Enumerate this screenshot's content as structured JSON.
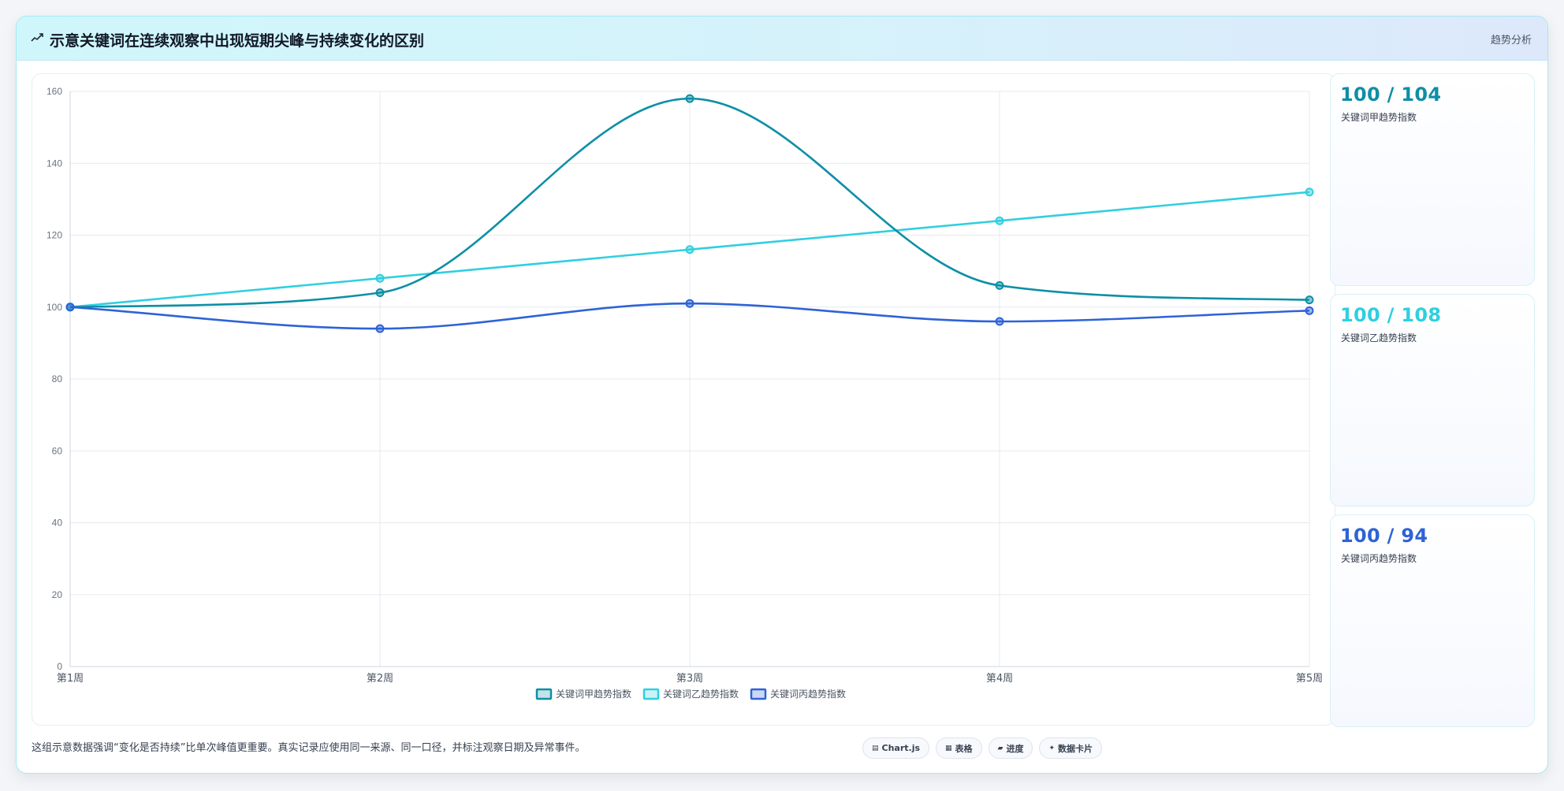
{
  "header": {
    "title": "示意关键词在连续观察中出现短期尖峰与持续变化的区别",
    "tag": "趋势分析",
    "icon": "trend-line-icon"
  },
  "chart_data": {
    "type": "line",
    "categories": [
      "第1周",
      "第2周",
      "第3周",
      "第4周",
      "第5周"
    ],
    "series": [
      {
        "name": "关键词甲趋势指数",
        "values": [
          100,
          104,
          158,
          106,
          102
        ],
        "color": "#0e8fa6"
      },
      {
        "name": "关键词乙趋势指数",
        "values": [
          100,
          108,
          116,
          124,
          132
        ],
        "color": "#2fcfe0"
      },
      {
        "name": "关键词丙趋势指数",
        "values": [
          100,
          94,
          101,
          96,
          99
        ],
        "color": "#2e63d6"
      }
    ],
    "ylim": [
      0,
      160
    ],
    "yticks": [
      0,
      20,
      40,
      60,
      80,
      100,
      120,
      140,
      160
    ],
    "grid": true,
    "legend": "bottom-center",
    "smooth": true
  },
  "stats": [
    {
      "value": "100 / 104",
      "label": "关键词甲趋势指数",
      "color": "#0e8fa6"
    },
    {
      "value": "100 / 108",
      "label": "关键词乙趋势指数",
      "color": "#2fcfe0"
    },
    {
      "value": "100 / 94",
      "label": "关键词丙趋势指数",
      "color": "#2e63d6"
    }
  ],
  "footer": {
    "note": "这组示意数据强调“变化是否持续”比单次峰值更重要。真实记录应使用同一来源、同一口径，并标注观察日期及异常事件。",
    "chips": [
      {
        "icon": "chart-icon",
        "glyph": "▤",
        "label": "Chart.js"
      },
      {
        "icon": "table-icon",
        "glyph": "▦",
        "label": "表格"
      },
      {
        "icon": "progress-icon",
        "glyph": "▰",
        "label": "进度"
      },
      {
        "icon": "data-card-icon",
        "glyph": "✦",
        "label": "数据卡片"
      }
    ]
  }
}
